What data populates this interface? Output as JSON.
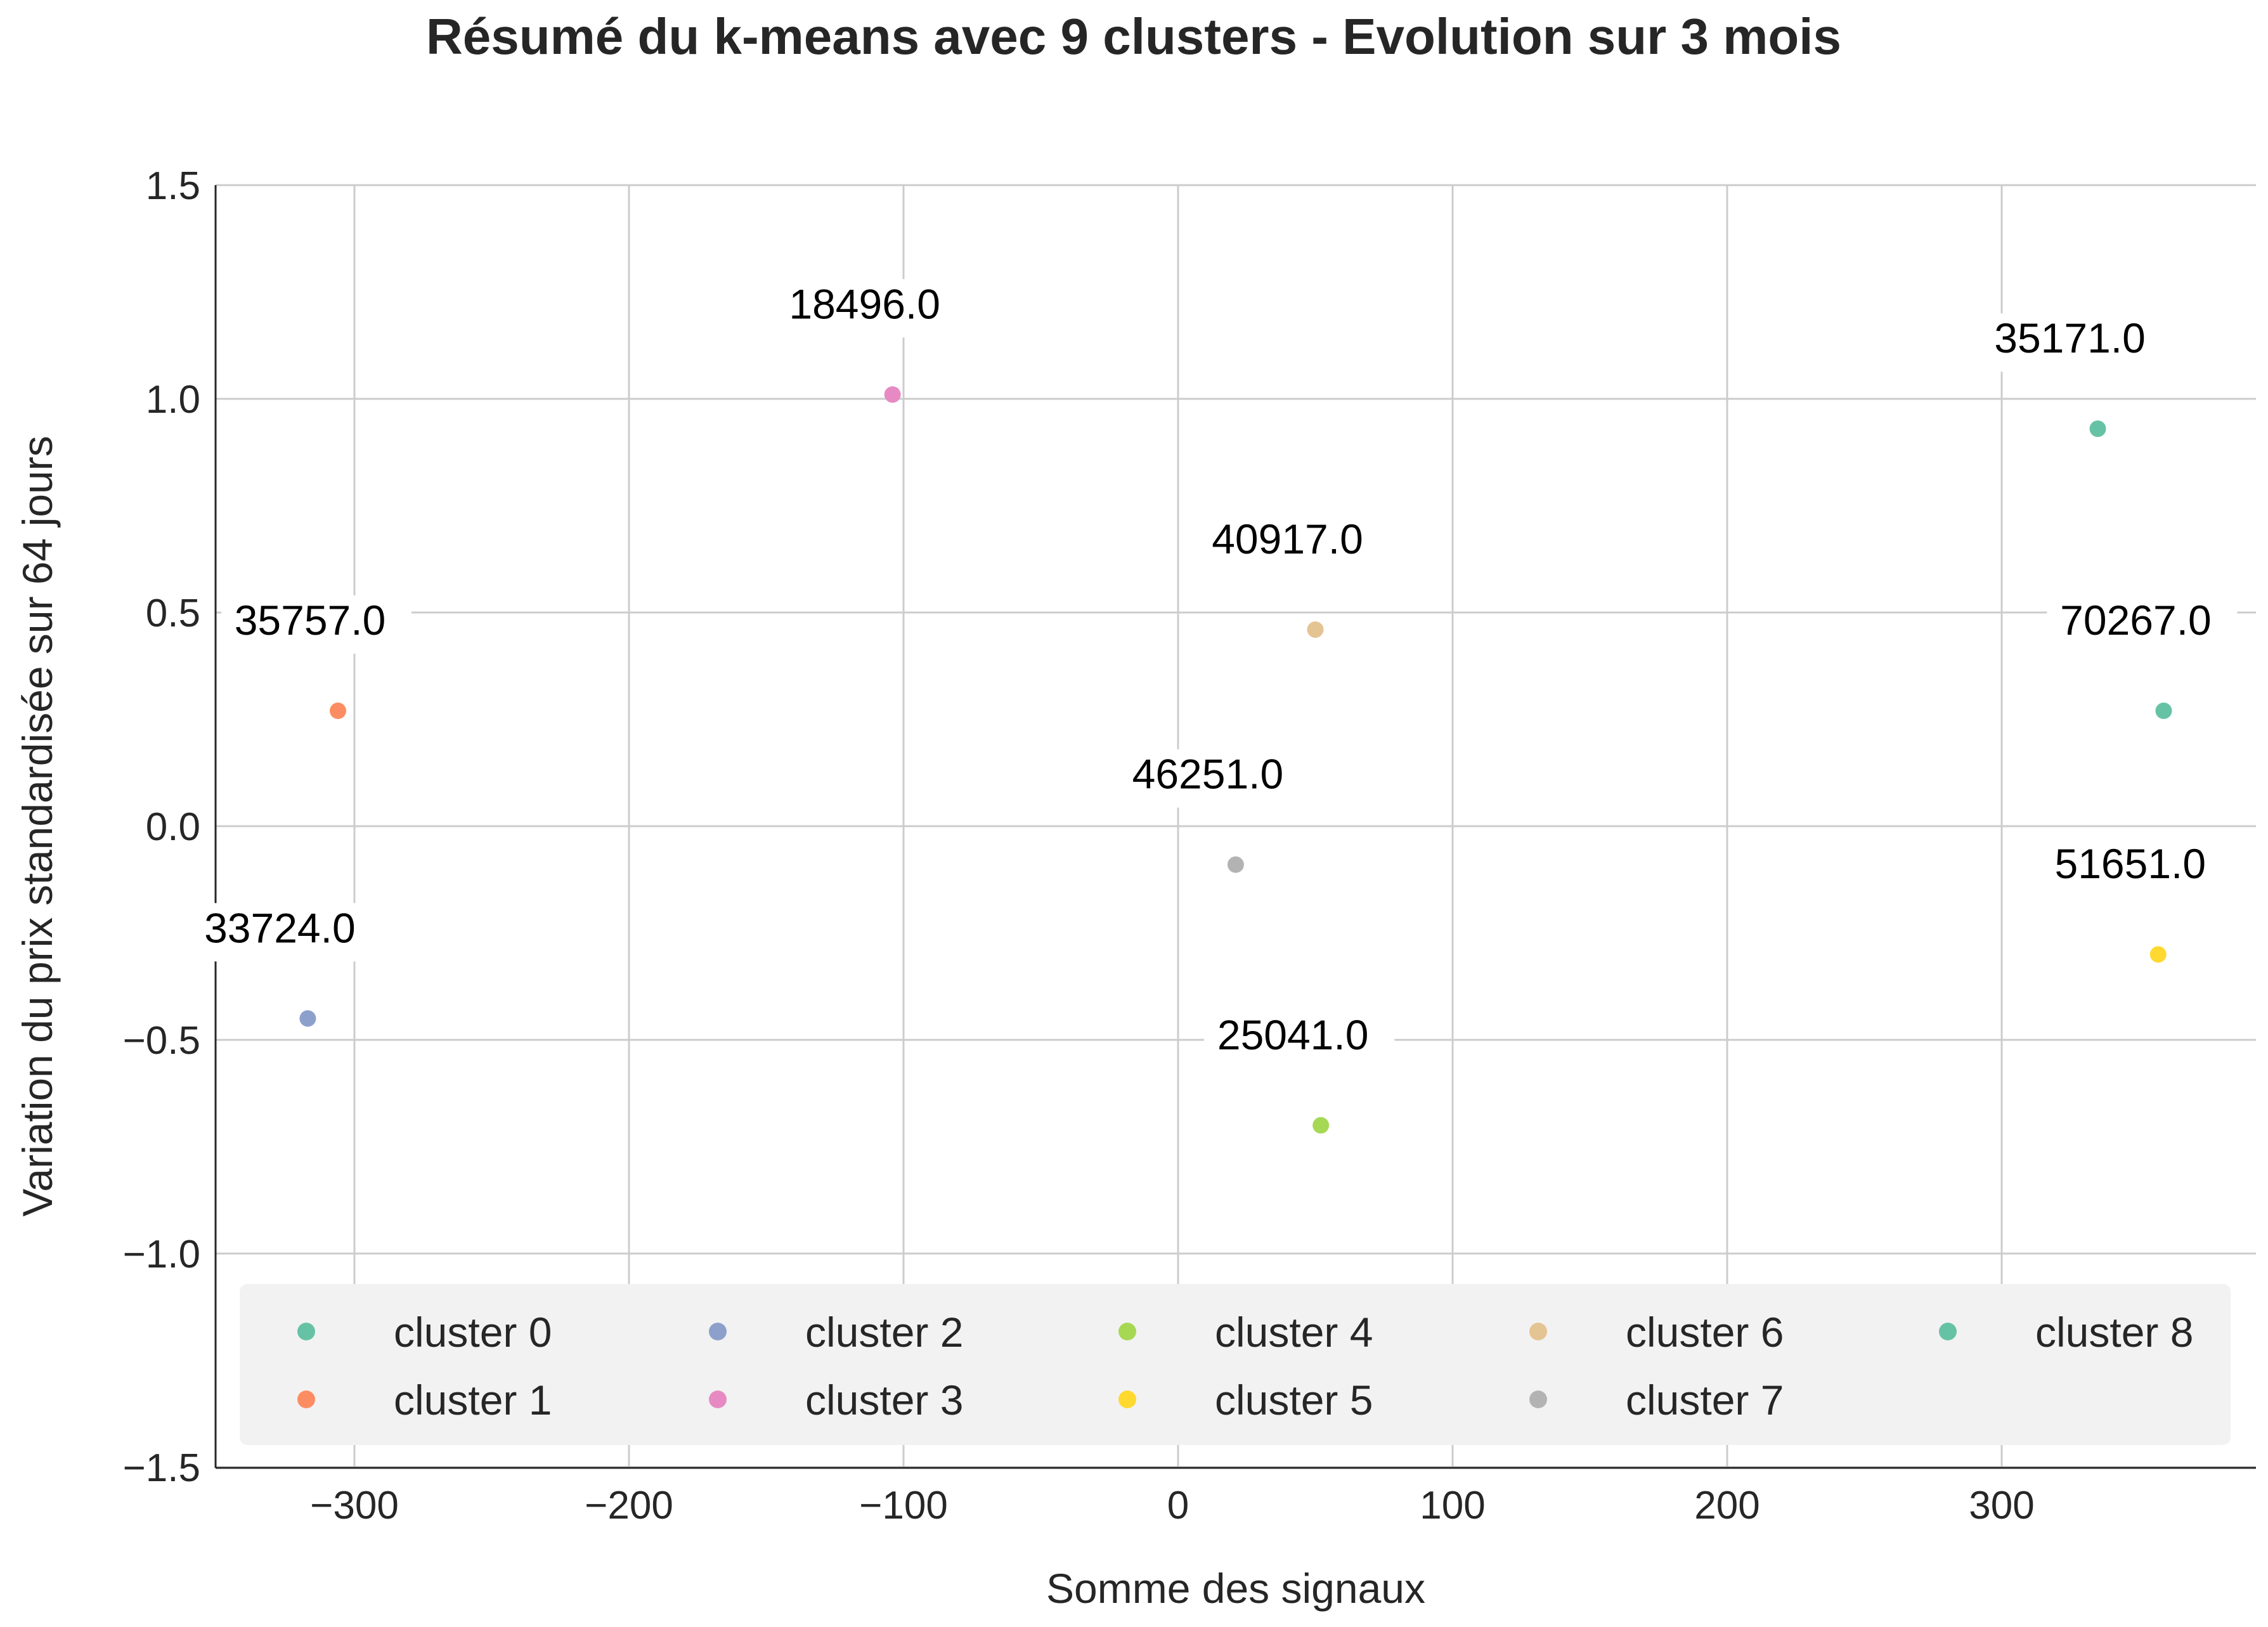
{
  "chart_data": {
    "type": "scatter",
    "title": "Résumé du k-means avec 9 clusters - Evolution sur 3 mois",
    "xlabel": "Somme des signaux",
    "ylabel": "Variation du prix standardisée sur 64 jours",
    "xlim": [
      -350,
      390
    ],
    "ylim": [
      -1.5,
      1.5
    ],
    "xticks": [
      -300,
      -200,
      -100,
      0,
      100,
      200,
      300
    ],
    "yticks": [
      -1.5,
      -1.0,
      -0.5,
      0.0,
      0.5,
      1.0,
      1.5
    ],
    "xtick_labels": [
      "−300",
      "−200",
      "−100",
      "0",
      "100",
      "200",
      "300"
    ],
    "ytick_labels": [
      "−1.5",
      "−1.0",
      "−0.5",
      "0.0",
      "0.5",
      "1.0",
      "1.5"
    ],
    "grid": true,
    "legend_position": "bottom",
    "series": [
      {
        "name": "cluster 0",
        "color": "#66c2a5",
        "x": 335,
        "y": 0.93,
        "label": "35171.0"
      },
      {
        "name": "cluster 1",
        "color": "#fc8d62",
        "x": -306,
        "y": 0.27,
        "label": "35757.0"
      },
      {
        "name": "cluster 2",
        "color": "#8da0cb",
        "x": -317,
        "y": -0.45,
        "label": "33724.0"
      },
      {
        "name": "cluster 3",
        "color": "#e78ac3",
        "x": -104,
        "y": 1.01,
        "label": "18496.0"
      },
      {
        "name": "cluster 4",
        "color": "#a6d854",
        "x": 52,
        "y": -0.7,
        "label": "25041.0"
      },
      {
        "name": "cluster 5",
        "color": "#ffd92f",
        "x": 357,
        "y": -0.3,
        "label": "51651.0"
      },
      {
        "name": "cluster 6",
        "color": "#e5c494",
        "x": 50,
        "y": 0.46,
        "label": "40917.0"
      },
      {
        "name": "cluster 7",
        "color": "#b3b3b3",
        "x": 21,
        "y": -0.09,
        "label": "46251.0"
      },
      {
        "name": "cluster 8",
        "color": "#66c2a5",
        "x": 359,
        "y": 0.27,
        "label": "70267.0"
      }
    ]
  }
}
